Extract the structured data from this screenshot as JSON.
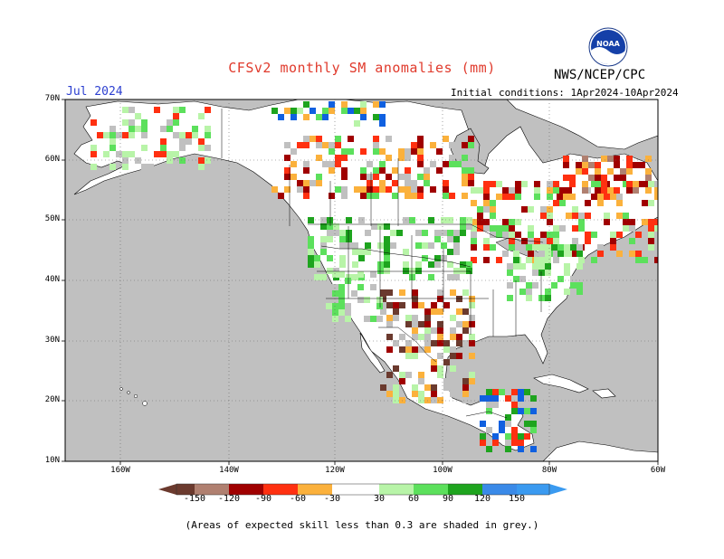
{
  "header": {
    "title": "CFSv2 monthly SM anomalies (mm)",
    "org": "NWS/NCEP/CPC",
    "logo_text": "NOAA",
    "month": "Jul 2024",
    "initial_conditions": "Initial conditions: 1Apr2024-10Apr2024"
  },
  "map": {
    "lat_labels": [
      "70N",
      "60N",
      "50N",
      "40N",
      "30N",
      "20N",
      "10N"
    ],
    "lon_labels": [
      "160W",
      "140W",
      "120W",
      "100W",
      "80W",
      "60W"
    ],
    "ocean_color": "#c0c0c0",
    "land_color": "#ffffff"
  },
  "colorbar": {
    "labels": [
      "-150",
      "-120",
      "-90",
      "-60",
      "-30",
      "30",
      "60",
      "90",
      "120",
      "150"
    ],
    "colors": [
      "#6b3a2e",
      "#b08070",
      "#a00000",
      "#dd2200",
      "#ff5a1c",
      "#fbb13c",
      "#ffffff",
      "#b8f4a8",
      "#5ce05c",
      "#1ea41e",
      "#1060e0",
      "#3a9af0"
    ]
  },
  "footnote": "(Areas of expected skill less than 0.3 are shaded in grey.)"
}
